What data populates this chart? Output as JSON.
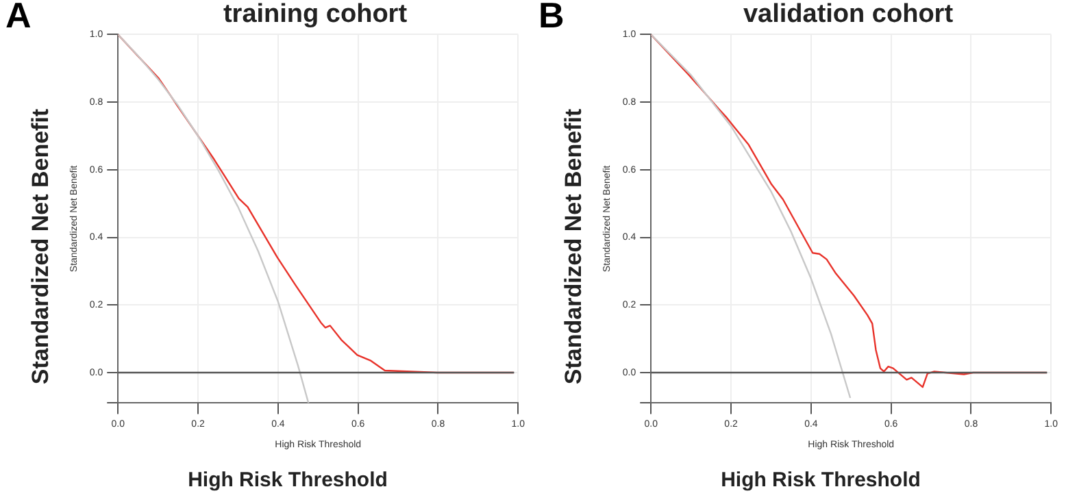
{
  "chart_data": [
    {
      "type": "line",
      "title": "training cohort",
      "xlabel": "High Risk Threshold",
      "ylabel": "Standardized Net Benefit",
      "annotations": [
        "A",
        "Standardized Net Benefit",
        "High Risk Threshold"
      ],
      "xlim": [
        0,
        1
      ],
      "ylim": [
        -0.09,
        1
      ],
      "xticks": [
        {
          "value": 0,
          "label": "0.0"
        },
        {
          "value": 0.2,
          "label": "0.2"
        },
        {
          "value": 0.4,
          "label": "0.4"
        },
        {
          "value": 0.6,
          "label": "0.6"
        },
        {
          "value": 0.8,
          "label": "0.8"
        },
        {
          "value": 1,
          "label": "1.0"
        }
      ],
      "yticks": [
        {
          "value": 0,
          "label": "0.0"
        },
        {
          "value": 0.2,
          "label": "0.2"
        },
        {
          "value": 0.4,
          "label": "0.4"
        },
        {
          "value": 0.6,
          "label": "0.6"
        },
        {
          "value": 0.8,
          "label": "0.8"
        },
        {
          "value": 1,
          "label": "1.0"
        }
      ],
      "grid": true,
      "series": [
        {
          "color": "#555555",
          "x": [
            0,
            0.99
          ],
          "values": [
            0,
            0
          ]
        },
        {
          "color": "#c8c8c8",
          "x": [
            0,
            0.05,
            0.1,
            0.15,
            0.2,
            0.25,
            0.3,
            0.35,
            0.4,
            0.45,
            0.476
          ],
          "values": [
            1,
            0.937,
            0.868,
            0.79,
            0.7,
            0.6,
            0.49,
            0.36,
            0.21,
            0.02,
            -0.09
          ]
        },
        {
          "color": "#e8322a",
          "x": [
            0,
            0.102,
            0.199,
            0.24,
            0.302,
            0.324,
            0.398,
            0.444,
            0.507,
            0.518,
            0.53,
            0.558,
            0.598,
            0.632,
            0.667,
            0.798,
            0.989
          ],
          "values": [
            1,
            0.87,
            0.702,
            0.631,
            0.515,
            0.49,
            0.341,
            0.258,
            0.148,
            0.133,
            0.139,
            0.097,
            0.052,
            0.035,
            0.006,
            0,
            0
          ]
        }
      ]
    },
    {
      "type": "line",
      "title": "validation cohort",
      "xlabel": "High Risk Threshold",
      "ylabel": "Standardized Net Benefit",
      "annotations": [
        "B",
        "Standardized Net Benefit",
        "High Risk Threshold"
      ],
      "xlim": [
        0,
        1
      ],
      "ylim": [
        -0.09,
        1
      ],
      "xticks": [
        {
          "value": 0,
          "label": "0.0"
        },
        {
          "value": 0.2,
          "label": "0.2"
        },
        {
          "value": 0.4,
          "label": "0.4"
        },
        {
          "value": 0.6,
          "label": "0.6"
        },
        {
          "value": 0.8,
          "label": "0.8"
        },
        {
          "value": 1,
          "label": "1.0"
        }
      ],
      "yticks": [
        {
          "value": 0,
          "label": "0.0"
        },
        {
          "value": 0.2,
          "label": "0.2"
        },
        {
          "value": 0.4,
          "label": "0.4"
        },
        {
          "value": 0.6,
          "label": "0.6"
        },
        {
          "value": 0.8,
          "label": "0.8"
        },
        {
          "value": 1,
          "label": "1.0"
        }
      ],
      "grid": true,
      "series": [
        {
          "color": "#555555",
          "x": [
            0,
            0.99
          ],
          "values": [
            0,
            0
          ]
        },
        {
          "color": "#c8c8c8",
          "x": [
            0,
            0.1,
            0.2,
            0.3,
            0.35,
            0.4,
            0.45,
            0.498
          ],
          "values": [
            1,
            0.88,
            0.729,
            0.536,
            0.417,
            0.278,
            0.114,
            -0.075
          ]
        },
        {
          "color": "#e8322a",
          "x": [
            0,
            0.095,
            0.17,
            0.187,
            0.21,
            0.244,
            0.301,
            0.33,
            0.404,
            0.421,
            0.439,
            0.462,
            0.507,
            0.541,
            0.553,
            0.562,
            0.573,
            0.582,
            0.593,
            0.605,
            0.639,
            0.651,
            0.679,
            0.691,
            0.708,
            0.782,
            0.805,
            0.989
          ],
          "values": [
            1,
            0.88,
            0.779,
            0.757,
            0.723,
            0.674,
            0.557,
            0.512,
            0.354,
            0.351,
            0.335,
            0.293,
            0.228,
            0.17,
            0.145,
            0.067,
            0.013,
            0.003,
            0.018,
            0.013,
            -0.021,
            -0.015,
            -0.043,
            -0.003,
            0.003,
            -0.005,
            0,
            0
          ]
        }
      ]
    }
  ]
}
